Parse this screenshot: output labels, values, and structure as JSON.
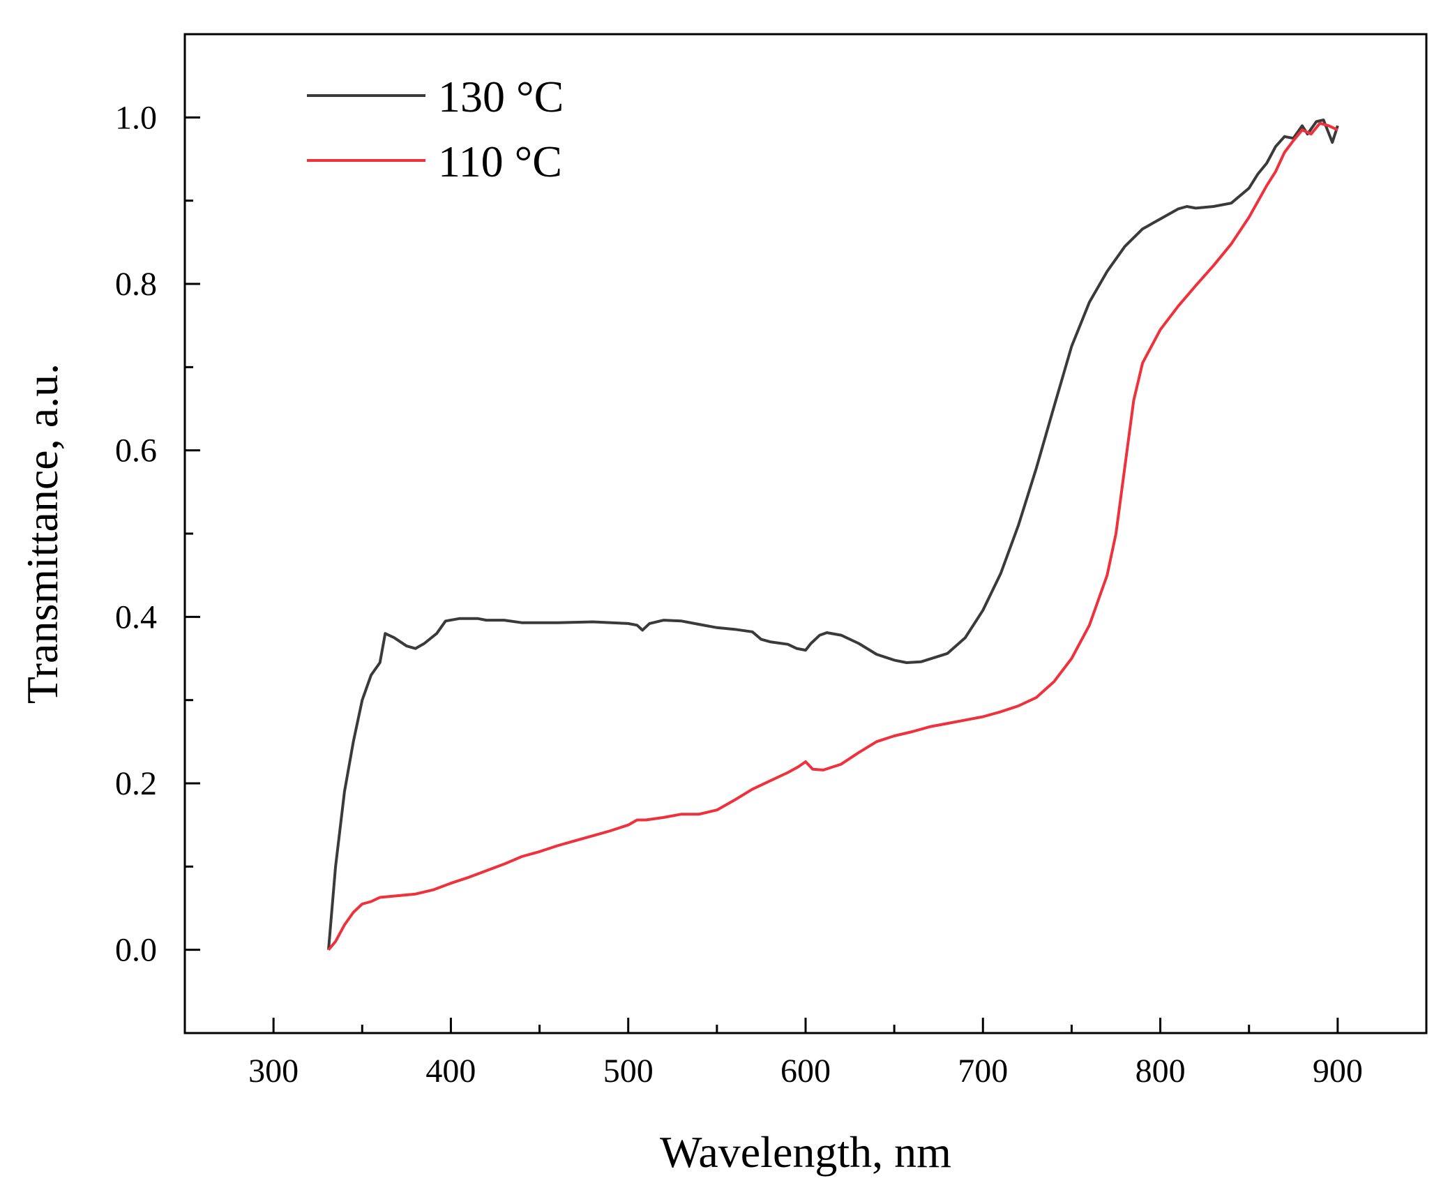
{
  "chart_data": {
    "type": "line",
    "title": "",
    "xlabel": "Wavelength, nm",
    "ylabel": "Transmittance, a.u.",
    "xlim": [
      250,
      950
    ],
    "ylim": [
      -0.1,
      1.1
    ],
    "xticks": [
      300,
      400,
      500,
      600,
      700,
      800,
      900
    ],
    "xtick_labels": [
      "300",
      "400",
      "500",
      "600",
      "700",
      "800",
      "900"
    ],
    "yticks": [
      0.0,
      0.2,
      0.4,
      0.6,
      0.8,
      1.0
    ],
    "ytick_labels": [
      "0.0",
      "0.2",
      "0.4",
      "0.6",
      "0.8",
      "1.0"
    ],
    "grid": false,
    "legend_position": "top-left",
    "series": [
      {
        "name": "130 °C",
        "color": "#3a3a3a",
        "points": [
          [
            331,
            0.0
          ],
          [
            335,
            0.1
          ],
          [
            340,
            0.19
          ],
          [
            345,
            0.25
          ],
          [
            350,
            0.3
          ],
          [
            355,
            0.33
          ],
          [
            360,
            0.345
          ],
          [
            363,
            0.38
          ],
          [
            368,
            0.375
          ],
          [
            375,
            0.365
          ],
          [
            380,
            0.362
          ],
          [
            385,
            0.368
          ],
          [
            392,
            0.38
          ],
          [
            397,
            0.395
          ],
          [
            405,
            0.398
          ],
          [
            415,
            0.398
          ],
          [
            420,
            0.396
          ],
          [
            430,
            0.396
          ],
          [
            440,
            0.393
          ],
          [
            460,
            0.393
          ],
          [
            480,
            0.394
          ],
          [
            500,
            0.392
          ],
          [
            505,
            0.39
          ],
          [
            508,
            0.384
          ],
          [
            512,
            0.392
          ],
          [
            520,
            0.396
          ],
          [
            530,
            0.395
          ],
          [
            540,
            0.391
          ],
          [
            550,
            0.387
          ],
          [
            560,
            0.385
          ],
          [
            570,
            0.382
          ],
          [
            575,
            0.373
          ],
          [
            580,
            0.37
          ],
          [
            590,
            0.367
          ],
          [
            595,
            0.362
          ],
          [
            600,
            0.36
          ],
          [
            603,
            0.368
          ],
          [
            608,
            0.378
          ],
          [
            612,
            0.381
          ],
          [
            620,
            0.378
          ],
          [
            630,
            0.368
          ],
          [
            640,
            0.355
          ],
          [
            650,
            0.348
          ],
          [
            657,
            0.345
          ],
          [
            665,
            0.346
          ],
          [
            680,
            0.356
          ],
          [
            690,
            0.375
          ],
          [
            700,
            0.408
          ],
          [
            710,
            0.452
          ],
          [
            720,
            0.51
          ],
          [
            730,
            0.578
          ],
          [
            740,
            0.652
          ],
          [
            750,
            0.725
          ],
          [
            760,
            0.778
          ],
          [
            770,
            0.815
          ],
          [
            780,
            0.845
          ],
          [
            790,
            0.866
          ],
          [
            800,
            0.878
          ],
          [
            810,
            0.89
          ],
          [
            815,
            0.893
          ],
          [
            820,
            0.891
          ],
          [
            830,
            0.893
          ],
          [
            840,
            0.897
          ],
          [
            850,
            0.915
          ],
          [
            855,
            0.932
          ],
          [
            860,
            0.945
          ],
          [
            865,
            0.965
          ],
          [
            870,
            0.977
          ],
          [
            875,
            0.975
          ],
          [
            880,
            0.99
          ],
          [
            883,
            0.98
          ],
          [
            888,
            0.995
          ],
          [
            892,
            0.997
          ],
          [
            897,
            0.97
          ],
          [
            900,
            0.99
          ]
        ]
      },
      {
        "name": "110 °C",
        "color": "#f0303a",
        "points": [
          [
            331,
            0.0
          ],
          [
            335,
            0.01
          ],
          [
            340,
            0.03
          ],
          [
            345,
            0.045
          ],
          [
            350,
            0.055
          ],
          [
            355,
            0.058
          ],
          [
            360,
            0.063
          ],
          [
            370,
            0.065
          ],
          [
            380,
            0.067
          ],
          [
            390,
            0.072
          ],
          [
            400,
            0.08
          ],
          [
            410,
            0.087
          ],
          [
            420,
            0.095
          ],
          [
            430,
            0.103
          ],
          [
            440,
            0.112
          ],
          [
            450,
            0.118
          ],
          [
            460,
            0.125
          ],
          [
            470,
            0.131
          ],
          [
            480,
            0.137
          ],
          [
            490,
            0.143
          ],
          [
            500,
            0.15
          ],
          [
            505,
            0.156
          ],
          [
            510,
            0.156
          ],
          [
            520,
            0.159
          ],
          [
            530,
            0.163
          ],
          [
            540,
            0.163
          ],
          [
            550,
            0.168
          ],
          [
            560,
            0.18
          ],
          [
            570,
            0.193
          ],
          [
            580,
            0.203
          ],
          [
            590,
            0.213
          ],
          [
            596,
            0.22
          ],
          [
            600,
            0.226
          ],
          [
            604,
            0.217
          ],
          [
            610,
            0.216
          ],
          [
            620,
            0.223
          ],
          [
            630,
            0.237
          ],
          [
            640,
            0.25
          ],
          [
            650,
            0.257
          ],
          [
            660,
            0.262
          ],
          [
            670,
            0.268
          ],
          [
            680,
            0.272
          ],
          [
            690,
            0.276
          ],
          [
            700,
            0.28
          ],
          [
            710,
            0.286
          ],
          [
            720,
            0.293
          ],
          [
            730,
            0.303
          ],
          [
            740,
            0.322
          ],
          [
            750,
            0.35
          ],
          [
            760,
            0.39
          ],
          [
            770,
            0.45
          ],
          [
            775,
            0.5
          ],
          [
            780,
            0.58
          ],
          [
            785,
            0.66
          ],
          [
            790,
            0.705
          ],
          [
            800,
            0.745
          ],
          [
            810,
            0.773
          ],
          [
            820,
            0.798
          ],
          [
            830,
            0.822
          ],
          [
            840,
            0.848
          ],
          [
            850,
            0.88
          ],
          [
            860,
            0.918
          ],
          [
            865,
            0.935
          ],
          [
            870,
            0.958
          ],
          [
            875,
            0.972
          ],
          [
            880,
            0.985
          ],
          [
            885,
            0.98
          ],
          [
            890,
            0.993
          ],
          [
            895,
            0.99
          ],
          [
            900,
            0.985
          ]
        ]
      }
    ]
  }
}
